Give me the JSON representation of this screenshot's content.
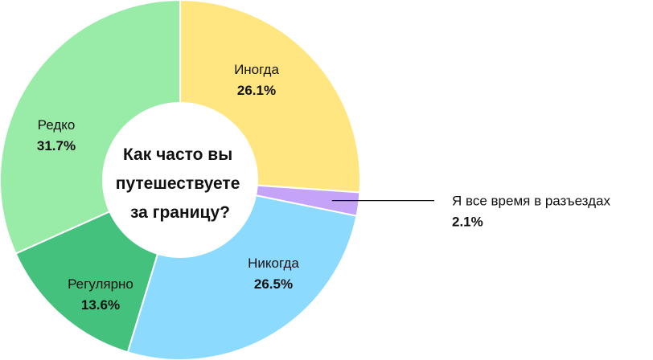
{
  "chart_data": {
    "type": "pie",
    "title": "Как часто вы путешествуете за границу?",
    "title_lines": [
      "Как часто вы",
      "путешествуете",
      "за границу?"
    ],
    "start": "top",
    "direction": "clockwise",
    "slices": [
      {
        "label": "Иногда",
        "value": 26.1,
        "value_label": "26.1%",
        "color": "#FFE680"
      },
      {
        "label": "Я все время в разъездах",
        "value": 2.1,
        "value_label": "2.1%",
        "color": "#C4A3F8"
      },
      {
        "label": "Никогда",
        "value": 26.5,
        "value_label": "26.5%",
        "color": "#8CDBFF"
      },
      {
        "label": "Регулярно",
        "value": 13.6,
        "value_label": "13.6%",
        "color": "#45C17E"
      },
      {
        "label": "Редко",
        "value": 31.7,
        "value_label": "31.7%",
        "color": "#99ECA8"
      }
    ]
  }
}
